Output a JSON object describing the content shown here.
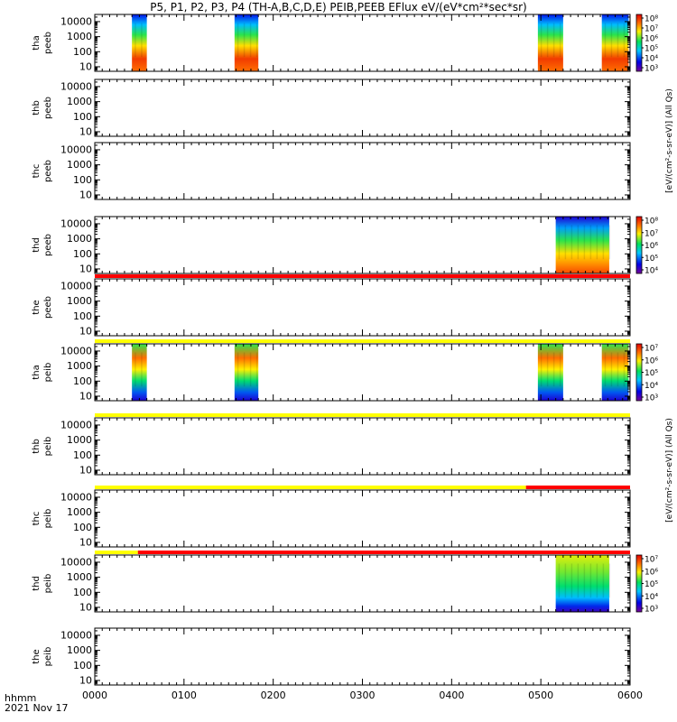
{
  "title": "P5, P1, P2, P3, P4 (TH-A,B,C,D,E) PEIB,PEEB EFlux eV/(eV*cm²*sec*sr)",
  "colorbar_labels": {
    "electron": "[eV/(cm²-s-sr-eV)]  (All Qs)",
    "ion": "[eV/(cm²-s-sr-eV)]  (All Qs)"
  },
  "footer": {
    "time_label": "hhmm",
    "date_label": "2021 Nov 17"
  },
  "chart_data": {
    "type": "heatmap",
    "x_ticks": [
      "0000",
      "0100",
      "0200",
      "0300",
      "0400",
      "0500",
      "0600"
    ],
    "xlim_minutes": [
      0,
      360
    ],
    "y_ticks": [
      "10",
      "100",
      "1000",
      "10000"
    ],
    "ylim_eV": [
      5,
      30000
    ],
    "y_scale": "log",
    "panels": [
      {
        "ylabel_top": "tha",
        "ylabel_bottom": "peeb",
        "intervals_minutes": [
          [
            25,
            35
          ],
          [
            94,
            110
          ],
          [
            298,
            315
          ],
          [
            341,
            359
          ]
        ],
        "colorbar_ticks": [
          "10⁸",
          "10⁷",
          "10⁶",
          "10⁵",
          "10⁴",
          "10³"
        ],
        "colorbar_label_key": "electron",
        "mode_bar": null
      },
      {
        "ylabel_top": "thb",
        "ylabel_bottom": "peeb",
        "intervals_minutes": [],
        "colorbar_ticks": [],
        "mode_bar": null
      },
      {
        "ylabel_top": "thc",
        "ylabel_bottom": "peeb",
        "intervals_minutes": [],
        "colorbar_ticks": [],
        "mode_bar": null
      },
      {
        "ylabel_top": "thd",
        "ylabel_bottom": "peeb",
        "intervals_minutes": [
          [
            310,
            346
          ]
        ],
        "colorbar_ticks": [
          "10⁸",
          "10⁷",
          "10⁶",
          "10⁵",
          "10⁴"
        ],
        "mode_bar": null
      },
      {
        "ylabel_top": "the",
        "ylabel_bottom": "peeb",
        "intervals_minutes": [],
        "colorbar_ticks": [],
        "mode_bar": [
          {
            "from": 0,
            "to": 360,
            "color": "#ff0000"
          }
        ]
      },
      {
        "ylabel_top": "tha",
        "ylabel_bottom": "peib",
        "intervals_minutes": [
          [
            25,
            35
          ],
          [
            94,
            110
          ],
          [
            298,
            315
          ],
          [
            341,
            359
          ]
        ],
        "colorbar_ticks": [
          "10⁷",
          "10⁶",
          "10⁵",
          "10⁴",
          "10³"
        ],
        "colorbar_label_key": "ion",
        "mode_bar": [
          {
            "from": 0,
            "to": 360,
            "color": "#ffff00"
          }
        ]
      },
      {
        "ylabel_top": "thb",
        "ylabel_bottom": "peib",
        "intervals_minutes": [],
        "colorbar_ticks": [],
        "mode_bar": [
          {
            "from": 0,
            "to": 360,
            "color": "#ffff00"
          }
        ]
      },
      {
        "ylabel_top": "thc",
        "ylabel_bottom": "peib",
        "intervals_minutes": [],
        "colorbar_ticks": [],
        "mode_bar": [
          {
            "from": 0,
            "to": 290,
            "color": "#ffff00"
          },
          {
            "from": 290,
            "to": 360,
            "color": "#ff0000"
          }
        ]
      },
      {
        "ylabel_top": "thd",
        "ylabel_bottom": "peib",
        "intervals_minutes": [
          [
            310,
            346
          ]
        ],
        "colorbar_ticks": [
          "10⁷",
          "10⁶",
          "10⁵",
          "10⁴",
          "10³"
        ],
        "mode_bar": [
          {
            "from": 0,
            "to": 29,
            "color": "#ffff00"
          },
          {
            "from": 29,
            "to": 360,
            "color": "#ff0000"
          }
        ]
      },
      {
        "ylabel_top": "the",
        "ylabel_bottom": "peib",
        "intervals_minutes": [],
        "colorbar_ticks": [],
        "mode_bar": null
      }
    ]
  }
}
